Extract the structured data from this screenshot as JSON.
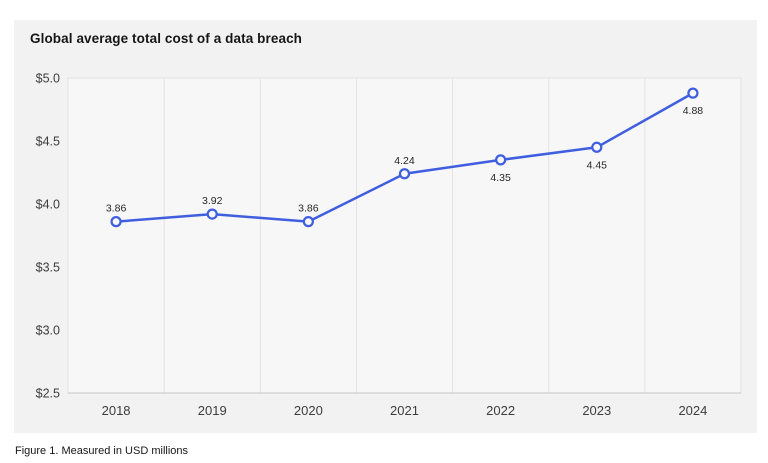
{
  "page": {
    "title": "Global average total cost of a data breach",
    "caption": "Figure 1. Measured in USD millions"
  },
  "chart_data": {
    "type": "line",
    "title": "Global average total cost of a data breach",
    "subtitle": "Figure 1. Measured in USD millions",
    "categories": [
      "2018",
      "2019",
      "2020",
      "2021",
      "2022",
      "2023",
      "2024"
    ],
    "series": [
      {
        "name": "Global average total cost of a data breach (USD millions)",
        "values": [
          3.86,
          3.92,
          3.86,
          4.24,
          4.35,
          4.45,
          4.88
        ]
      }
    ],
    "point_labels": [
      "3.86",
      "3.92",
      "3.86",
      "4.24",
      "4.35",
      "4.45",
      "4.88"
    ],
    "point_label_positions": [
      "above",
      "above",
      "above",
      "above",
      "below",
      "below",
      "below"
    ],
    "y_tick_labels": [
      "$5.0",
      "$4.5",
      "$4.0",
      "$3.5",
      "$3.0",
      "$2.5"
    ],
    "ylim": [
      2.5,
      5.0
    ],
    "xlabel": "",
    "ylabel": "",
    "grid": "vertical-only",
    "legend_position": "none",
    "colors": {
      "line": "#3f5fe0",
      "marker_fill": "#f8f8f8",
      "panel_bg": "#f2f2f2",
      "plot_bg": "#f7f7f7",
      "gridline": "#e3e3e3",
      "top_border": "#e0e0e0",
      "axis_line": "#c6c6c6",
      "title_text": "#161616",
      "tick_text": "#3d3d3d",
      "data_label_text": "#262626"
    }
  }
}
